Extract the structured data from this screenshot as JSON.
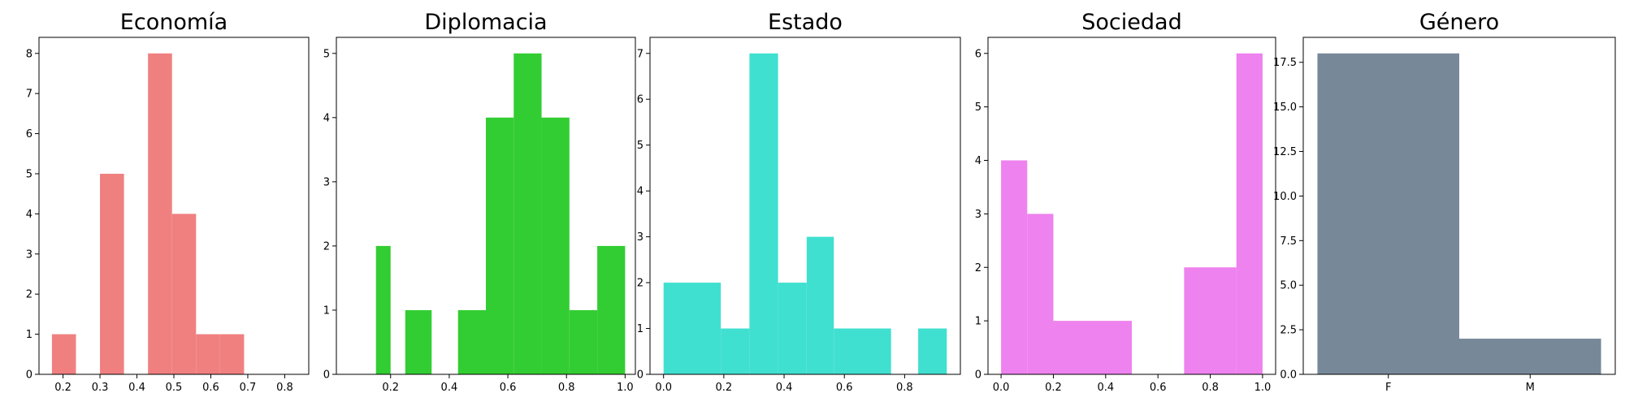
{
  "chart_data": [
    {
      "type": "bar",
      "title": "Economía",
      "color": "#f08080",
      "xlim": [
        0.135,
        0.865
      ],
      "ylim": [
        0,
        8.4
      ],
      "xticks": [
        0.2,
        0.3,
        0.4,
        0.5,
        0.6,
        0.7,
        0.8
      ],
      "xticklabels": [
        "0.2",
        "0.3",
        "0.4",
        "0.5",
        "0.6",
        "0.7",
        "0.8"
      ],
      "yticks": [
        0,
        1,
        2,
        3,
        4,
        5,
        6,
        7,
        8
      ],
      "yticklabels": [
        "0",
        "1",
        "2",
        "3",
        "4",
        "5",
        "6",
        "7",
        "8"
      ],
      "bins": [
        [
          0.17,
          0.235,
          1
        ],
        [
          0.235,
          0.3,
          0
        ],
        [
          0.3,
          0.365,
          5
        ],
        [
          0.365,
          0.43,
          0
        ],
        [
          0.43,
          0.495,
          8
        ],
        [
          0.495,
          0.56,
          4
        ],
        [
          0.56,
          0.625,
          1
        ],
        [
          0.625,
          0.69,
          1
        ]
      ]
    },
    {
      "type": "bar",
      "title": "Diplomacia",
      "color": "#32cd32",
      "xlim": [
        0.015,
        1.035
      ],
      "ylim": [
        0,
        5.25
      ],
      "xticks": [
        0.2,
        0.4,
        0.6,
        0.8,
        1.0
      ],
      "xticklabels": [
        "0.2",
        "0.4",
        "0.6",
        "0.8",
        "1.0"
      ],
      "yticks": [
        0,
        1,
        2,
        3,
        4,
        5
      ],
      "yticklabels": [
        "0",
        "1",
        "2",
        "3",
        "4",
        "5"
      ],
      "bins": [
        [
          0.15,
          0.2,
          2
        ],
        [
          0.2,
          0.25,
          0
        ],
        [
          0.25,
          0.34,
          1
        ],
        [
          0.34,
          0.43,
          0
        ],
        [
          0.43,
          0.525,
          1
        ],
        [
          0.525,
          0.62,
          4
        ],
        [
          0.62,
          0.715,
          5
        ],
        [
          0.715,
          0.81,
          4
        ],
        [
          0.81,
          0.905,
          1
        ],
        [
          0.905,
          1.0,
          2
        ]
      ]
    },
    {
      "type": "bar",
      "title": "Estado",
      "color": "#40e0d0",
      "xlim": [
        -0.045,
        0.985
      ],
      "ylim": [
        0,
        7.35
      ],
      "xticks": [
        0.0,
        0.2,
        0.4,
        0.6,
        0.8
      ],
      "xticklabels": [
        "0.0",
        "0.2",
        "0.4",
        "0.6",
        "0.8"
      ],
      "yticks": [
        0,
        1,
        2,
        3,
        4,
        5,
        6,
        7
      ],
      "yticklabels": [
        "0",
        "1",
        "2",
        "3",
        "4",
        "5",
        "6",
        "7"
      ],
      "bins": [
        [
          0.0,
          0.19,
          2
        ],
        [
          0.19,
          0.285,
          1
        ],
        [
          0.285,
          0.38,
          7
        ],
        [
          0.38,
          0.475,
          2
        ],
        [
          0.475,
          0.565,
          3
        ],
        [
          0.565,
          0.755,
          1
        ],
        [
          0.755,
          0.845,
          0
        ],
        [
          0.845,
          0.94,
          1
        ]
      ]
    },
    {
      "type": "bar",
      "title": "Sociedad",
      "color": "#ee82ee",
      "xlim": [
        -0.05,
        1.05
      ],
      "ylim": [
        0,
        6.3
      ],
      "xticks": [
        0.0,
        0.2,
        0.4,
        0.6,
        0.8,
        1.0
      ],
      "xticklabels": [
        "0.0",
        "0.2",
        "0.4",
        "0.6",
        "0.8",
        "1.0"
      ],
      "yticks": [
        0,
        1,
        2,
        3,
        4,
        5,
        6
      ],
      "yticklabels": [
        "0",
        "1",
        "2",
        "3",
        "4",
        "5",
        "6"
      ],
      "bins": [
        [
          0.0,
          0.1,
          4
        ],
        [
          0.1,
          0.2,
          3
        ],
        [
          0.2,
          0.5,
          1
        ],
        [
          0.5,
          0.7,
          0
        ],
        [
          0.7,
          0.9,
          2
        ],
        [
          0.9,
          1.0,
          6
        ]
      ]
    },
    {
      "type": "bar",
      "title": "Género",
      "color": "#778899",
      "xlim": [
        -0.05,
        1.05
      ],
      "ylim": [
        0,
        18.9
      ],
      "xticks": [
        0.25,
        0.75
      ],
      "xticklabels": [
        "F",
        "M"
      ],
      "yticks": [
        0,
        2.5,
        5,
        7.5,
        10,
        12.5,
        15,
        17.5
      ],
      "yticklabels": [
        "0.0",
        "2.5",
        "5.0",
        "7.5",
        "10.0",
        "12.5",
        "15.0",
        "17.5"
      ],
      "bins": [
        [
          0.0,
          0.5,
          18
        ],
        [
          0.5,
          1.0,
          2
        ]
      ]
    }
  ]
}
